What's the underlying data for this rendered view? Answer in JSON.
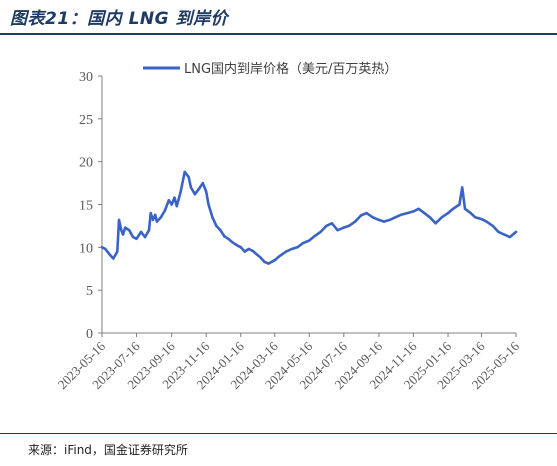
{
  "header": {
    "title": "图表21：国内 LNG 到岸价"
  },
  "footer": {
    "source": "来源：iFind，国金证券研究所"
  },
  "chart_data": {
    "type": "line",
    "title": "",
    "xlabel": "",
    "ylabel": "",
    "ylim": [
      0,
      30
    ],
    "y_ticks": [
      "0",
      "5",
      "10",
      "15",
      "20",
      "25",
      "30"
    ],
    "x_tick_labels": [
      "2023-05-16",
      "2023-07-16",
      "2023-09-16",
      "2023-11-16",
      "2024-01-16",
      "2024-03-16",
      "2024-05-16",
      "2024-07-16",
      "2024-09-16",
      "2024-11-16",
      "2025-01-16",
      "2025-03-16",
      "2025-05-16"
    ],
    "grid": false,
    "legend_position": "top-center",
    "color": "#3a63c7",
    "series": [
      {
        "name": "LNG国内到岸价格（美元/百万英热）",
        "x": [
          "2023-05-16",
          "2023-05-22",
          "2023-05-29",
          "2023-06-05",
          "2023-06-12",
          "2023-06-15",
          "2023-06-19",
          "2023-06-22",
          "2023-06-26",
          "2023-07-03",
          "2023-07-10",
          "2023-07-16",
          "2023-07-24",
          "2023-07-31",
          "2023-08-07",
          "2023-08-10",
          "2023-08-14",
          "2023-08-18",
          "2023-08-21",
          "2023-08-28",
          "2023-09-04",
          "2023-09-11",
          "2023-09-16",
          "2023-09-21",
          "2023-09-25",
          "2023-10-02",
          "2023-10-09",
          "2023-10-16",
          "2023-10-20",
          "2023-10-27",
          "2023-11-03",
          "2023-11-10",
          "2023-11-16",
          "2023-11-20",
          "2023-11-27",
          "2023-12-04",
          "2023-12-11",
          "2023-12-18",
          "2023-12-25",
          "2024-01-01",
          "2024-01-08",
          "2024-01-16",
          "2024-01-23",
          "2024-01-30",
          "2024-02-06",
          "2024-02-13",
          "2024-02-20",
          "2024-02-27",
          "2024-03-05",
          "2024-03-16",
          "2024-03-25",
          "2024-04-05",
          "2024-04-15",
          "2024-04-25",
          "2024-05-05",
          "2024-05-16",
          "2024-05-25",
          "2024-06-05",
          "2024-06-15",
          "2024-06-25",
          "2024-07-05",
          "2024-07-16",
          "2024-07-25",
          "2024-08-05",
          "2024-08-15",
          "2024-08-25",
          "2024-09-05",
          "2024-09-16",
          "2024-09-25",
          "2024-10-05",
          "2024-10-15",
          "2024-10-25",
          "2024-11-05",
          "2024-11-16",
          "2024-11-25",
          "2024-12-05",
          "2024-12-15",
          "2024-12-25",
          "2025-01-05",
          "2025-01-16",
          "2025-01-25",
          "2025-02-05",
          "2025-02-10",
          "2025-02-15",
          "2025-02-25",
          "2025-03-05",
          "2025-03-16",
          "2025-03-25",
          "2025-04-05",
          "2025-04-15",
          "2025-04-25",
          "2025-05-05",
          "2025-05-16"
        ],
        "values": [
          10.0,
          9.8,
          9.2,
          8.7,
          9.5,
          13.2,
          12.0,
          11.5,
          12.3,
          12.0,
          11.2,
          11.0,
          11.8,
          11.2,
          12.0,
          14.0,
          13.2,
          13.8,
          13.0,
          13.5,
          14.3,
          15.5,
          15.0,
          15.8,
          14.8,
          16.5,
          18.8,
          18.2,
          17.0,
          16.2,
          16.8,
          17.5,
          16.5,
          15.0,
          13.5,
          12.5,
          12.0,
          11.3,
          11.0,
          10.6,
          10.3,
          10.0,
          9.5,
          9.8,
          9.6,
          9.2,
          8.8,
          8.3,
          8.1,
          8.5,
          9.0,
          9.5,
          9.8,
          10.0,
          10.5,
          10.8,
          11.3,
          11.8,
          12.5,
          12.8,
          12.0,
          12.3,
          12.5,
          13.0,
          13.7,
          14.0,
          13.5,
          13.2,
          13.0,
          13.2,
          13.5,
          13.8,
          14.0,
          14.2,
          14.5,
          14.0,
          13.5,
          12.8,
          13.5,
          14.0,
          14.5,
          15.0,
          17.0,
          14.5,
          14.0,
          13.5,
          13.3,
          13.0,
          12.5,
          11.8,
          11.5,
          11.2,
          11.8
        ]
      }
    ]
  }
}
